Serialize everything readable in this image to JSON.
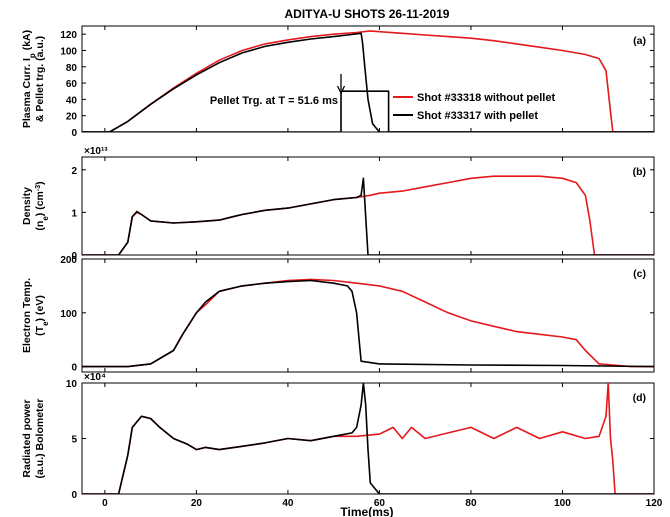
{
  "title": "ADITYA-U SHOTS  26-11-2019",
  "xlabel": "Time(ms)",
  "x_ticks": [
    "0",
    "20",
    "40",
    "60",
    "80",
    "100",
    "120"
  ],
  "colors": {
    "without_pellet": "#e3191c",
    "with_pellet": "#000000"
  },
  "legend": {
    "without_pellet": "Shot #33318 without pellet",
    "with_pellet": "Shot #33317 with pellet"
  },
  "annotation": "Pellet Trg. at T = 51.6 ms",
  "panels": [
    {
      "label": "(a)",
      "ylabel_line1": "Plasma Curr. I",
      "ylabel_sub1": "p",
      "ylabel_line1_end": " (kA)",
      "ylabel_line2": "& Pellet trg. (a.u.)",
      "yticks": [
        "0",
        "20",
        "40",
        "60",
        "80",
        "100",
        "120"
      ],
      "multiplier": ""
    },
    {
      "label": "(b)",
      "ylabel_line1": "Density",
      "ylabel_line2_pre": "(n",
      "ylabel_sub2": "e",
      "ylabel_line2_mid": ") (cm",
      "ylabel_sup2": "-3",
      "ylabel_line2_end": ")",
      "yticks": [
        "0",
        "1",
        "2"
      ],
      "multiplier": "×10¹³"
    },
    {
      "label": "(c)",
      "ylabel_line1": "Electron Temp.",
      "ylabel_line2_pre": "(T",
      "ylabel_sub2": "e",
      "ylabel_line2_end": ") (eV)",
      "yticks": [
        "0",
        "100",
        "200"
      ],
      "multiplier": ""
    },
    {
      "label": "(d)",
      "ylabel_line1": "Radiated power",
      "ylabel_line2": "(a.u.) Bolometer",
      "yticks": [
        "0",
        "5",
        "10"
      ],
      "multiplier": "×10⁴"
    }
  ],
  "chart_data": [
    {
      "type": "line",
      "title": "ADITYA-U SHOTS  26-11-2019",
      "xlabel": "Time(ms)",
      "ylabel": "Plasma Curr. Ip (kA) & Pellet trg. (a.u.)",
      "xlim": [
        -5,
        120
      ],
      "ylim": [
        0,
        130
      ],
      "series": [
        {
          "name": "Shot #33318 without pellet",
          "color": "#e3191c",
          "x": [
            -5,
            0,
            1,
            5,
            10,
            15,
            20,
            25,
            30,
            35,
            40,
            45,
            50,
            55,
            58,
            60,
            65,
            70,
            75,
            80,
            85,
            90,
            95,
            100,
            105,
            108,
            109.5,
            110.5,
            111,
            120
          ],
          "y": [
            0,
            0,
            0,
            13,
            34,
            54,
            72,
            88,
            100,
            108,
            113,
            117,
            120,
            122,
            124,
            123,
            121,
            119,
            117,
            115,
            112,
            108,
            104,
            100,
            95,
            90,
            75,
            25,
            0,
            0
          ]
        },
        {
          "name": "Shot #33317 with pellet",
          "color": "#000000",
          "x": [
            -5,
            0,
            1,
            5,
            10,
            15,
            20,
            25,
            30,
            35,
            40,
            45,
            50,
            53,
            56,
            56.3,
            56.8,
            57.5,
            58.5,
            60,
            120
          ],
          "y": [
            0,
            0,
            0,
            13,
            34,
            53,
            70,
            85,
            97,
            105,
            110,
            114,
            117,
            119,
            121,
            110,
            80,
            40,
            10,
            0,
            0
          ]
        },
        {
          "name": "",
          "color": "#000000",
          "x": [
            -5,
            51.6,
            51.6,
            62,
            62,
            120
          ],
          "y": [
            0,
            0,
            50,
            50,
            0,
            0
          ]
        }
      ]
    },
    {
      "type": "line",
      "ylabel": "Density (ne) (cm-3)",
      "xlim": [
        -5,
        120
      ],
      "ylim": [
        0,
        2.3
      ],
      "series": [
        {
          "name": "Shot #33318 without pellet",
          "color": "#e3191c",
          "x": [
            -5,
            3,
            5,
            6,
            7,
            8,
            10,
            15,
            20,
            25,
            28,
            30,
            35,
            40,
            45,
            50,
            55,
            58,
            60,
            65,
            70,
            75,
            80,
            85,
            90,
            95,
            100,
            103,
            105,
            106,
            107,
            120
          ],
          "y": [
            0,
            0,
            0.3,
            0.9,
            1.0,
            0.95,
            0.8,
            0.75,
            0.78,
            0.82,
            0.9,
            0.95,
            1.05,
            1.1,
            1.2,
            1.3,
            1.35,
            1.4,
            1.45,
            1.5,
            1.6,
            1.7,
            1.8,
            1.85,
            1.85,
            1.85,
            1.8,
            1.7,
            1.4,
            0.8,
            0,
            0
          ]
        },
        {
          "name": "Shot #33317 with pellet",
          "color": "#000000",
          "x": [
            -5,
            3,
            5,
            6,
            7,
            8,
            10,
            15,
            20,
            25,
            28,
            30,
            35,
            40,
            45,
            50,
            55,
            56,
            56.5,
            57,
            57.5,
            120
          ],
          "y": [
            0,
            0,
            0.3,
            0.9,
            1.02,
            0.95,
            0.8,
            0.75,
            0.78,
            0.82,
            0.9,
            0.95,
            1.05,
            1.1,
            1.2,
            1.3,
            1.35,
            1.4,
            1.8,
            0.9,
            0,
            0
          ]
        }
      ]
    },
    {
      "type": "line",
      "ylabel": "Electron Temp. (Te) (eV)",
      "xlim": [
        -5,
        120
      ],
      "ylim": [
        -10,
        200
      ],
      "series": [
        {
          "name": "Shot #33318 without pellet",
          "color": "#e3191c",
          "x": [
            -5,
            5,
            10,
            15,
            17,
            20,
            22,
            25,
            30,
            35,
            40,
            45,
            50,
            55,
            60,
            65,
            70,
            75,
            80,
            85,
            90,
            95,
            100,
            103,
            105,
            108,
            115,
            120
          ],
          "y": [
            0,
            0,
            5,
            30,
            60,
            100,
            115,
            140,
            150,
            155,
            160,
            162,
            160,
            155,
            150,
            140,
            120,
            100,
            85,
            75,
            65,
            60,
            55,
            50,
            30,
            5,
            0,
            0
          ]
        },
        {
          "name": "Shot #33317 with pellet",
          "color": "#000000",
          "x": [
            -5,
            5,
            10,
            15,
            17,
            20,
            22,
            25,
            30,
            35,
            40,
            45,
            50,
            53,
            54,
            55,
            56,
            60,
            80,
            100,
            120
          ],
          "y": [
            0,
            0,
            5,
            30,
            60,
            100,
            120,
            140,
            150,
            155,
            158,
            160,
            155,
            150,
            140,
            100,
            10,
            5,
            3,
            2,
            0
          ]
        }
      ]
    },
    {
      "type": "line",
      "ylabel": "Radiated power (a.u.) Bolometer",
      "xlim": [
        -5,
        120
      ],
      "ylim": [
        0,
        10
      ],
      "series": [
        {
          "name": "Shot #33318 without pellet",
          "color": "#e3191c",
          "x": [
            -5,
            0,
            3,
            5,
            6,
            8,
            10,
            12,
            15,
            18,
            20,
            22,
            25,
            30,
            35,
            40,
            45,
            50,
            55,
            60,
            63,
            65,
            67,
            70,
            75,
            80,
            85,
            90,
            95,
            100,
            105,
            108,
            109.5,
            110,
            110.5,
            111,
            111.5,
            112,
            120
          ],
          "y": [
            0,
            0,
            0,
            3.5,
            6,
            7,
            6.8,
            6,
            5,
            4.5,
            4,
            4.2,
            4,
            4.3,
            4.6,
            5,
            4.8,
            5.2,
            5.2,
            5.4,
            6,
            5,
            6,
            5,
            5.5,
            6,
            5,
            6,
            5,
            5.6,
            5,
            5.2,
            7,
            10,
            5,
            3,
            0,
            0,
            0
          ]
        },
        {
          "name": "Shot #33317 with pellet",
          "color": "#000000",
          "x": [
            -5,
            0,
            3,
            5,
            6,
            8,
            10,
            12,
            15,
            18,
            20,
            22,
            25,
            30,
            35,
            40,
            45,
            50,
            54,
            55,
            56,
            56.5,
            57,
            57.5,
            58,
            60,
            120
          ],
          "y": [
            0,
            0,
            0,
            3.5,
            6,
            7,
            6.8,
            6,
            5,
            4.5,
            4,
            4.2,
            4,
            4.3,
            4.6,
            5,
            4.8,
            5.2,
            5.5,
            6,
            8,
            10,
            8,
            4,
            1,
            0,
            0
          ]
        }
      ]
    }
  ]
}
